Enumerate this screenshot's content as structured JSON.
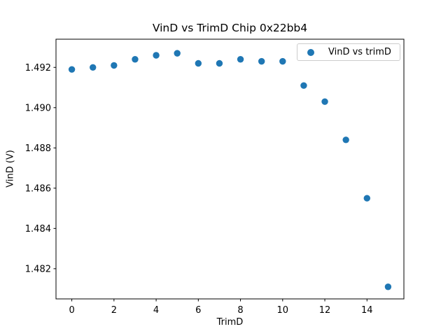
{
  "figure": {
    "background": "#ffffff"
  },
  "chart_data": {
    "type": "scatter",
    "title": "VinD vs TrimD Chip 0x22bb4",
    "xlabel": "TrimD",
    "ylabel": "VinD (V)",
    "legend": [
      "VinD vs trimD"
    ],
    "legend_position": "upper right",
    "marker_color": "#1f77b4",
    "grid": false,
    "x": [
      0,
      1,
      2,
      3,
      4,
      5,
      6,
      7,
      8,
      9,
      10,
      11,
      12,
      13,
      14,
      15
    ],
    "y": [
      1.4919,
      1.492,
      1.4921,
      1.4924,
      1.4926,
      1.4927,
      1.4922,
      1.4922,
      1.4924,
      1.4923,
      1.4923,
      1.4911,
      1.4903,
      1.4884,
      1.4855,
      1.4811
    ],
    "xlim": [
      -0.75,
      15.75
    ],
    "ylim": [
      1.4805,
      1.4934
    ],
    "xticks": {
      "values": [
        0,
        2,
        4,
        6,
        8,
        10,
        12,
        14
      ],
      "labels": [
        "0",
        "2",
        "4",
        "6",
        "8",
        "10",
        "12",
        "14"
      ]
    },
    "yticks": {
      "values": [
        1.482,
        1.484,
        1.486,
        1.488,
        1.49,
        1.492
      ],
      "labels": [
        "1.482",
        "1.484",
        "1.486",
        "1.488",
        "1.490",
        "1.492"
      ]
    }
  }
}
